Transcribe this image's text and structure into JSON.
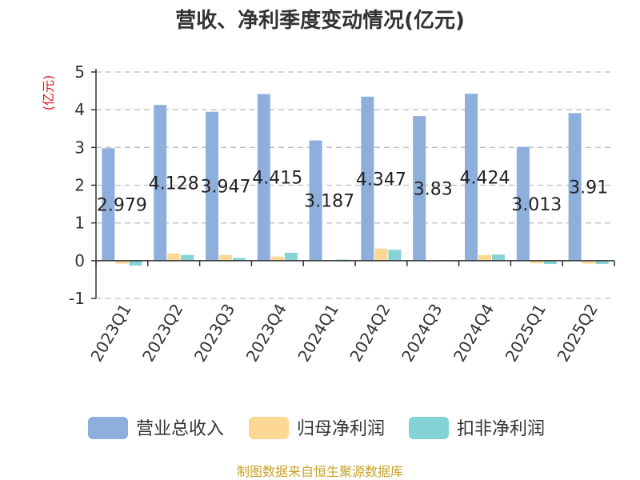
{
  "title": "营收、净利季度变动情况(亿元)",
  "source": "制图数据来自恒生聚源数据库",
  "colors": {
    "revenue": "#8eaedc",
    "net_profit": "#fdd795",
    "deducted_net_profit": "#86d3d6",
    "grid": "#bfbfbf",
    "axis": "#333333",
    "ylabel": "#e0141e",
    "source": "#c9a227"
  },
  "chart_data": {
    "type": "bar",
    "title": "营收、净利季度变动情况(亿元)",
    "ylabel": "(亿元)",
    "xlabel": "",
    "ylim": [
      -1,
      5
    ],
    "yticks": [
      -1,
      0,
      1,
      2,
      3,
      4,
      5
    ],
    "grid": true,
    "legend_position": "bottom",
    "categories": [
      "2023Q1",
      "2023Q2",
      "2023Q3",
      "2023Q4",
      "2024Q1",
      "2024Q2",
      "2024Q3",
      "2024Q4",
      "2025Q1",
      "2025Q2"
    ],
    "series": [
      {
        "name": "营业总收入",
        "color": "#8eaedc",
        "values": [
          2.979,
          4.128,
          3.947,
          4.415,
          3.187,
          4.347,
          3.83,
          4.424,
          3.013,
          3.91
        ],
        "labels": [
          "2.979",
          "4.128",
          "3.947",
          "4.415",
          "3.187",
          "4.347",
          "3.83",
          "4.424",
          "3.013",
          "3.91"
        ]
      },
      {
        "name": "归母净利润",
        "color": "#fdd795",
        "values": [
          -0.08,
          0.19,
          0.15,
          0.11,
          0.02,
          0.32,
          0.01,
          0.15,
          -0.07,
          -0.08
        ]
      },
      {
        "name": "扣非净利润",
        "color": "#86d3d6",
        "values": [
          -0.13,
          0.15,
          0.07,
          0.21,
          0.03,
          0.29,
          0.01,
          0.16,
          -0.09,
          -0.09
        ]
      }
    ]
  }
}
